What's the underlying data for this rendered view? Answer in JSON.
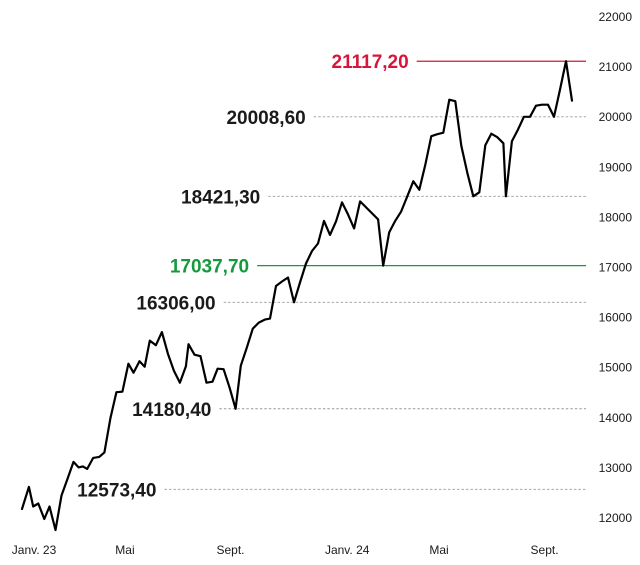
{
  "chart_data": {
    "type": "line",
    "title": "",
    "xlabel": "",
    "ylabel": "",
    "ylim": [
      11800,
      22200
    ],
    "xlim": [
      "2023-01-01",
      "2024-10-10"
    ],
    "y_ticks": [
      12000,
      13000,
      14000,
      15000,
      16000,
      17000,
      18000,
      19000,
      20000,
      21000,
      22000
    ],
    "x_ticks": [
      {
        "date": "2023-01-15",
        "label": "Janv. 23"
      },
      {
        "date": "2023-05-01",
        "label": "Mai"
      },
      {
        "date": "2023-09-01",
        "label": "Sept."
      },
      {
        "date": "2024-01-15",
        "label": "Janv. 24"
      },
      {
        "date": "2024-05-01",
        "label": "Mai"
      },
      {
        "date": "2024-09-01",
        "label": "Sept."
      }
    ],
    "grid": false,
    "line_color": "#000000",
    "series": [
      {
        "name": "",
        "points": [
          [
            "2023-01-01",
            12180
          ],
          [
            "2023-01-09",
            12620
          ],
          [
            "2023-01-14",
            12230
          ],
          [
            "2023-01-20",
            12290
          ],
          [
            "2023-01-27",
            11980
          ],
          [
            "2023-02-02",
            12230
          ],
          [
            "2023-02-09",
            11760
          ],
          [
            "2023-02-16",
            12450
          ],
          [
            "2023-02-23",
            12780
          ],
          [
            "2023-03-02",
            13120
          ],
          [
            "2023-03-08",
            13010
          ],
          [
            "2023-03-13",
            13030
          ],
          [
            "2023-03-18",
            12980
          ],
          [
            "2023-03-25",
            13200
          ],
          [
            "2023-04-01",
            13220
          ],
          [
            "2023-04-07",
            13310
          ],
          [
            "2023-04-14",
            13990
          ],
          [
            "2023-04-21",
            14510
          ],
          [
            "2023-04-28",
            14520
          ],
          [
            "2023-05-05",
            15080
          ],
          [
            "2023-05-11",
            14900
          ],
          [
            "2023-05-18",
            15130
          ],
          [
            "2023-05-24",
            15020
          ],
          [
            "2023-05-30",
            15540
          ],
          [
            "2023-06-06",
            15450
          ],
          [
            "2023-06-13",
            15710
          ],
          [
            "2023-06-20",
            15280
          ],
          [
            "2023-06-27",
            14940
          ],
          [
            "2023-07-04",
            14700
          ],
          [
            "2023-07-11",
            15030
          ],
          [
            "2023-07-14",
            15470
          ],
          [
            "2023-07-21",
            15260
          ],
          [
            "2023-07-28",
            15230
          ],
          [
            "2023-08-04",
            14700
          ],
          [
            "2023-08-11",
            14720
          ],
          [
            "2023-08-17",
            14980
          ],
          [
            "2023-08-24",
            14970
          ],
          [
            "2023-08-31",
            14600
          ],
          [
            "2023-09-07",
            14180
          ],
          [
            "2023-09-13",
            15040
          ],
          [
            "2023-09-20",
            15400
          ],
          [
            "2023-09-27",
            15780
          ],
          [
            "2023-10-04",
            15900
          ],
          [
            "2023-10-11",
            15960
          ],
          [
            "2023-10-17",
            15980
          ],
          [
            "2023-10-24",
            16630
          ],
          [
            "2023-10-31",
            16720
          ],
          [
            "2023-11-07",
            16800
          ],
          [
            "2023-11-14",
            16306
          ],
          [
            "2023-11-21",
            16700
          ],
          [
            "2023-11-28",
            17080
          ],
          [
            "2023-12-05",
            17330
          ],
          [
            "2023-12-12",
            17480
          ],
          [
            "2023-12-19",
            17930
          ],
          [
            "2023-12-26",
            17650
          ],
          [
            "2024-01-02",
            17920
          ],
          [
            "2024-01-09",
            18300
          ],
          [
            "2024-01-16",
            18060
          ],
          [
            "2024-01-23",
            17780
          ],
          [
            "2024-01-30",
            18320
          ],
          [
            "2024-02-06",
            18200
          ],
          [
            "2024-02-13",
            18080
          ],
          [
            "2024-02-20",
            17960
          ],
          [
            "2024-02-26",
            17037.7
          ],
          [
            "2024-03-04",
            17700
          ],
          [
            "2024-03-11",
            17930
          ],
          [
            "2024-03-18",
            18120
          ],
          [
            "2024-03-25",
            18421.3
          ],
          [
            "2024-04-01",
            18720
          ],
          [
            "2024-04-08",
            18550
          ],
          [
            "2024-04-15",
            19050
          ],
          [
            "2024-04-22",
            19620
          ],
          [
            "2024-04-29",
            19660
          ],
          [
            "2024-05-06",
            19690
          ],
          [
            "2024-05-13",
            20350
          ],
          [
            "2024-05-20",
            20320
          ],
          [
            "2024-05-27",
            19430
          ],
          [
            "2024-06-03",
            18890
          ],
          [
            "2024-06-10",
            18421.3
          ],
          [
            "2024-06-17",
            18500
          ],
          [
            "2024-06-24",
            19440
          ],
          [
            "2024-07-01",
            19670
          ],
          [
            "2024-07-08",
            19600
          ],
          [
            "2024-07-15",
            19480
          ],
          [
            "2024-07-18",
            18421.3
          ],
          [
            "2024-07-25",
            19520
          ],
          [
            "2024-08-01",
            19750
          ],
          [
            "2024-08-08",
            20008.6
          ],
          [
            "2024-08-15",
            20008.6
          ],
          [
            "2024-08-22",
            20230
          ],
          [
            "2024-08-29",
            20250
          ],
          [
            "2024-09-05",
            20250
          ],
          [
            "2024-09-12",
            20008.6
          ],
          [
            "2024-09-19",
            20550
          ],
          [
            "2024-09-26",
            21117.2
          ],
          [
            "2024-10-03",
            20330
          ]
        ]
      }
    ],
    "annotations": [
      {
        "value": 21117.2,
        "label": "21117,20",
        "style": "solid",
        "color": "#d7153a",
        "line_from": "2024-04-05"
      },
      {
        "value": 20008.6,
        "label": "20008,60",
        "style": "dashed",
        "color": "#1a1a1a",
        "line_from": "2023-12-07"
      },
      {
        "value": 18421.3,
        "label": "18421,30",
        "style": "dashed",
        "color": "#1a1a1a",
        "line_from": "2023-10-15"
      },
      {
        "value": 17037.7,
        "label": "17037,70",
        "style": "solid",
        "color": "#149a3c",
        "line_from": "2023-10-02"
      },
      {
        "value": 16306,
        "label": "16306,00",
        "style": "dashed",
        "color": "#1a1a1a",
        "line_from": "2023-08-24"
      },
      {
        "value": 14180.4,
        "label": "14180,40",
        "style": "dashed",
        "color": "#1a1a1a",
        "line_from": "2023-08-19"
      },
      {
        "value": 12573.4,
        "label": "12573,40",
        "style": "dashed",
        "color": "#1a1a1a",
        "line_from": "2023-06-16"
      }
    ]
  }
}
